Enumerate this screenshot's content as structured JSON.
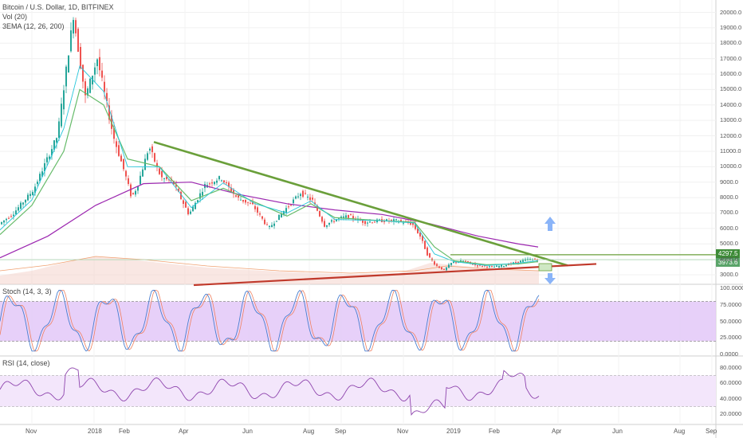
{
  "header": {
    "symbol": "Bitcoin / U.S. Dollar, 1D, BITFINEX",
    "vol": "Vol (20)",
    "ema": "3EMA (12, 26, 200)"
  },
  "price_tags": {
    "upper": "4297.5",
    "last": "3973.6"
  },
  "panes": {
    "stoch": "Stoch (14, 3, 3)",
    "rsi": "RSI (14, close)"
  },
  "colors": {
    "up": "#26a69a",
    "down": "#ef5350",
    "ema_fast": "#26c6da",
    "ema_mid": "#66bb6a",
    "ema_slow": "#9c27b0",
    "trend_green": "#6a9f3a",
    "trend_red": "#c0392b",
    "osc_fill": "#e3c8f8",
    "rsi_fill": "#f3e6fb",
    "arrow": "#8ab4f8"
  },
  "chart_data": [
    {
      "type": "candlestick",
      "title": "Bitcoin / U.S. Dollar, 1D, BITFINEX",
      "x_ticks": [
        "Nov",
        "2018",
        "Feb",
        "Apr",
        "Jun",
        "Aug",
        "Sep",
        "Nov",
        "2019",
        "Feb",
        "Apr",
        "Jun",
        "Aug",
        "Sep"
      ],
      "y_ticks": [
        20000,
        19000,
        18000,
        17000,
        16000,
        15000,
        14000,
        13000,
        12000,
        11000,
        10000,
        9000,
        8000,
        7000,
        6000,
        5000,
        4000,
        3000
      ],
      "ylim": [
        2300,
        20500
      ],
      "price_path": [
        [
          0,
          6200
        ],
        [
          20,
          7000
        ],
        [
          45,
          8500
        ],
        [
          75,
          12000
        ],
        [
          95,
          19800
        ],
        [
          110,
          14500
        ],
        [
          125,
          17000
        ],
        [
          145,
          12000
        ],
        [
          160,
          9500
        ],
        [
          168,
          8000
        ],
        [
          175,
          8700
        ],
        [
          190,
          11300
        ],
        [
          205,
          9300
        ],
        [
          220,
          9000
        ],
        [
          240,
          6900
        ],
        [
          260,
          8800
        ],
        [
          280,
          9300
        ],
        [
          300,
          8000
        ],
        [
          320,
          7500
        ],
        [
          340,
          6000
        ],
        [
          360,
          7200
        ],
        [
          380,
          8300
        ],
        [
          395,
          7800
        ],
        [
          410,
          6200
        ],
        [
          425,
          6600
        ],
        [
          440,
          6800
        ],
        [
          460,
          6400
        ],
        [
          480,
          6500
        ],
        [
          500,
          6500
        ],
        [
          520,
          6300
        ],
        [
          530,
          5500
        ],
        [
          540,
          4200
        ],
        [
          550,
          3600
        ],
        [
          560,
          3300
        ],
        [
          570,
          3800
        ],
        [
          585,
          3900
        ],
        [
          600,
          3600
        ],
        [
          620,
          3500
        ],
        [
          635,
          3600
        ],
        [
          650,
          3800
        ],
        [
          665,
          4000
        ],
        [
          675,
          3973
        ]
      ],
      "ema_200": [
        [
          0,
          4100
        ],
        [
          60,
          5500
        ],
        [
          120,
          7500
        ],
        [
          180,
          8900
        ],
        [
          240,
          9000
        ],
        [
          300,
          8200
        ],
        [
          360,
          7600
        ],
        [
          420,
          7200
        ],
        [
          480,
          6900
        ],
        [
          540,
          6300
        ],
        [
          600,
          5500
        ],
        [
          650,
          5000
        ],
        [
          675,
          4800
        ]
      ],
      "ema_26": [
        [
          0,
          5600
        ],
        [
          40,
          7500
        ],
        [
          80,
          11000
        ],
        [
          100,
          15000
        ],
        [
          130,
          14000
        ],
        [
          160,
          10500
        ],
        [
          200,
          10000
        ],
        [
          240,
          7800
        ],
        [
          280,
          8600
        ],
        [
          320,
          7700
        ],
        [
          360,
          6800
        ],
        [
          390,
          7600
        ],
        [
          420,
          6700
        ],
        [
          480,
          6500
        ],
        [
          520,
          6400
        ],
        [
          545,
          4800
        ],
        [
          570,
          3900
        ],
        [
          610,
          3650
        ],
        [
          650,
          3700
        ],
        [
          675,
          3850
        ]
      ],
      "trendlines": [
        {
          "kind": "resistance",
          "from": [
            193,
            11600
          ],
          "to": [
            712,
            3600
          ]
        },
        {
          "kind": "support",
          "from": [
            243,
            2400
          ],
          "to": [
            748,
            3700
          ]
        },
        {
          "kind": "horizontal",
          "from": [
            565,
            4297.5
          ],
          "to": [
            898,
            4297.5
          ]
        }
      ]
    },
    {
      "type": "line",
      "title": "Stoch (14, 3, 3)",
      "y_ticks": [
        100,
        75,
        50,
        25,
        0
      ],
      "ylim": [
        0,
        100
      ],
      "bands": [
        20,
        80
      ]
    },
    {
      "type": "line",
      "title": "RSI (14, close)",
      "y_ticks": [
        80,
        60,
        40,
        20
      ],
      "ylim": [
        10,
        90
      ],
      "bands": [
        30,
        70
      ]
    }
  ]
}
